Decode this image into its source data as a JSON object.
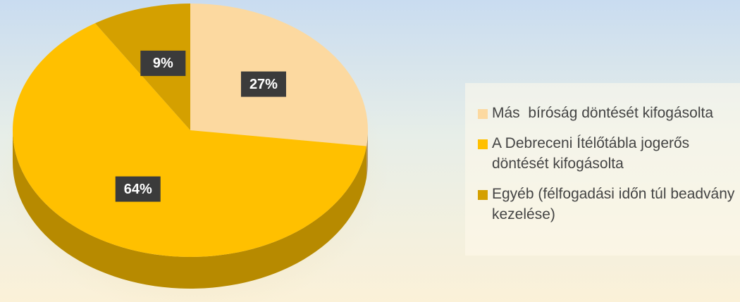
{
  "chart_data": {
    "type": "pie",
    "categories": [
      "Más  bíróság döntését kifogásolta",
      "A Debreceni Ítélőtábla jogerős döntését kifogásolta",
      "Egyéb (félfogadási időn túl beadvány kezelése)"
    ],
    "values": [
      27,
      64,
      9
    ],
    "value_labels": [
      "27%",
      "64%",
      "9%"
    ],
    "colors": [
      "#fcd9a0",
      "#ffc000",
      "#d4a000"
    ],
    "legend": "right"
  }
}
